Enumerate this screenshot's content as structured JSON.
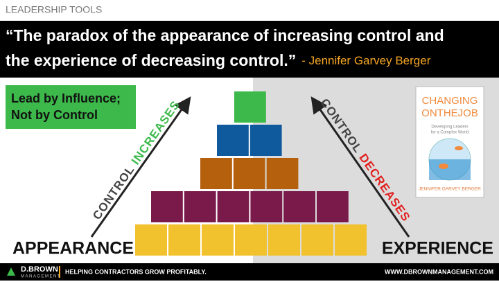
{
  "header": {
    "section": "LEADERSHIP TOOLS",
    "quote": [
      "“The paradox of the appearance of increasing control and",
      "the experience of decreasing control.”"
    ],
    "author": "- Jennifer Garvey Berger"
  },
  "callout": [
    "Lead by Influence;",
    "Not by Control"
  ],
  "left_arrow": {
    "word1": "CONTROL",
    "word2": "INCREASES"
  },
  "right_arrow": {
    "word1": "CONTROL",
    "word2": "DECREASES"
  },
  "left_label": "APPEARANCE",
  "right_label": "EXPERIENCE",
  "book": {
    "title1": "CHANGING",
    "title2": "ONTHEJOB",
    "subtitle": [
      "Developing Leaders",
      "for a Complex World"
    ],
    "author": "JENNIFER GARVEY BERGER"
  },
  "footer": {
    "brand": "D.BROWN",
    "brand_sub": "MANAGEMENT",
    "tagline": "HELPING CONTRACTORS GROW PROFITABLY.",
    "url": "WWW.DBROWNMANAGEMENT.COM"
  }
}
